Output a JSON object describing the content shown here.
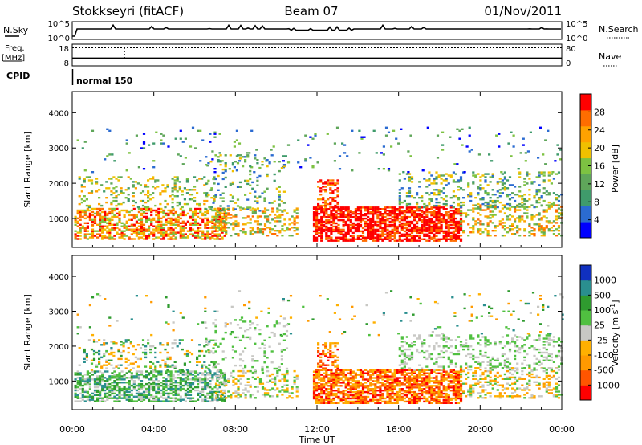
{
  "header": {
    "station": "Stokkseyri (fitACF)",
    "beam": "Beam 07",
    "date": "01/Nov/2011"
  },
  "top_panels": {
    "nsky_label": "N.Sky",
    "nsky_ticks": [
      "10^5",
      "10^0"
    ],
    "nsearch_label": "N.Search",
    "nsearch_ticks": [
      "10^5",
      "10^0"
    ],
    "freq_label": "Freq.",
    "freq_unit": "[MHz]",
    "freq_ticks": [
      "18",
      "8"
    ],
    "nave_label": "Nave",
    "nave_ticks": [
      "80",
      "0"
    ],
    "cpid_label": "CPID",
    "cpid_value": "normal 150"
  },
  "colors": {
    "power": [
      "#0000ff",
      "#2b6bd1",
      "#3f9b6b",
      "#5fa65a",
      "#7dc242",
      "#f0c000",
      "#ffa200",
      "#ff6d00",
      "#ff0000"
    ],
    "velocity": [
      "#ff0000",
      "#ff5500",
      "#ff9a00",
      "#ffb000",
      "#c8c8c4",
      "#50c040",
      "#2f9b2f",
      "#2a8f8f",
      "#1030c0"
    ]
  },
  "chart_data": [
    {
      "type": "heatmap",
      "panel": "power",
      "xlabel": "Time UT",
      "ylabel": "Slant Range [km]",
      "x_ticks": [
        "00:00",
        "04:00",
        "08:00",
        "12:00",
        "16:00",
        "20:00",
        "00:00"
      ],
      "x_range_hours": [
        0,
        24
      ],
      "y_range_km": [
        180,
        4600
      ],
      "y_ticks": [
        1000,
        2000,
        3000,
        4000
      ],
      "colorbar_label": "Power [dB]",
      "colorbar_ticks": [
        "4",
        "8",
        "12",
        "16",
        "20",
        "24",
        "28"
      ],
      "colorbar_range": [
        0,
        32
      ]
    },
    {
      "type": "heatmap",
      "panel": "velocity",
      "xlabel": "Time UT",
      "ylabel": "Slant Range [km]",
      "x_ticks": [
        "00:00",
        "04:00",
        "08:00",
        "12:00",
        "16:00",
        "20:00",
        "00:00"
      ],
      "x_range_hours": [
        0,
        24
      ],
      "y_range_km": [
        180,
        4600
      ],
      "y_ticks": [
        1000,
        2000,
        3000,
        4000
      ],
      "colorbar_label": "Velocity [m s",
      "colorbar_unit_sup": "-1",
      "colorbar_unit_end": "]",
      "colorbar_ticks": [
        "1000",
        "500",
        "100",
        "25",
        "-25",
        "-100",
        "-500",
        "-1000"
      ]
    }
  ]
}
